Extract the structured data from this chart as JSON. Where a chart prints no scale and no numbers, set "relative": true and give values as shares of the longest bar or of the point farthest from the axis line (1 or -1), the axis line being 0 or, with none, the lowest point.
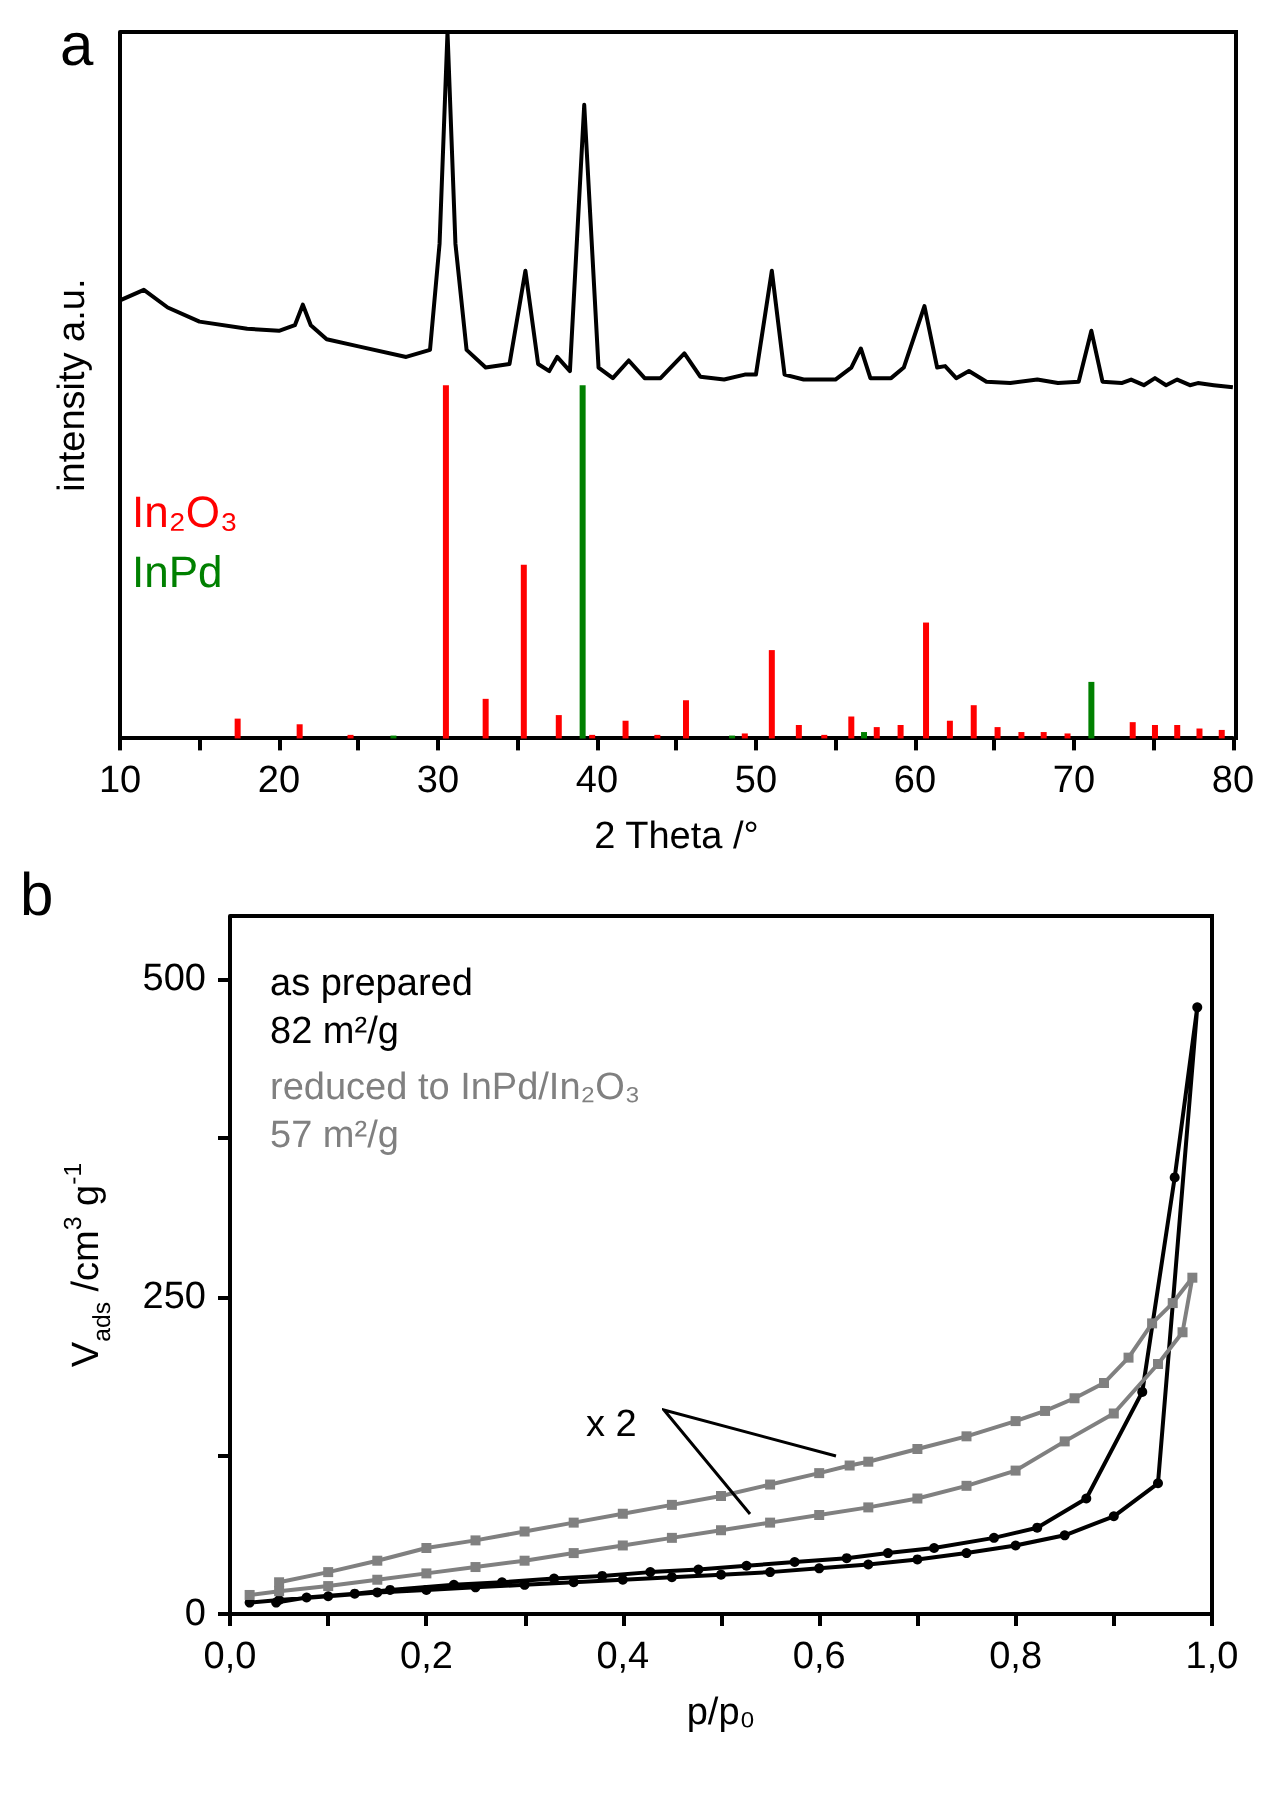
{
  "chart_data": [
    {
      "type": "line",
      "relative": true,
      "xlabel": "2 Theta /°",
      "ylabel": "intensity a.u.",
      "annotations": [
        "a"
      ],
      "tick_labels": "x",
      "marker": "none",
      "xlim": [
        10,
        80
      ],
      "xticks": [
        10,
        {
          "value": 15,
          "label": null
        },
        20,
        {
          "value": 25,
          "label": null
        },
        30,
        {
          "value": 35,
          "label": null
        },
        40,
        {
          "value": 45,
          "label": null
        },
        50,
        {
          "value": 55,
          "label": null
        },
        60,
        {
          "value": 65,
          "label": null
        },
        70,
        {
          "value": 75,
          "label": null
        },
        80
      ],
      "series": [
        {
          "color": "#000000",
          "x": [
            10,
            11.5,
            13,
            15,
            18,
            20,
            21,
            21.5,
            22,
            23,
            25,
            28,
            29.5,
            30.1,
            30.6,
            31.1,
            31.8,
            33,
            34.5,
            35.5,
            36.3,
            37,
            37.5,
            38.3,
            39.2,
            40.1,
            41,
            42,
            43,
            44,
            45.5,
            46.5,
            48,
            49.3,
            50,
            51,
            51.8,
            53,
            55,
            56,
            56.6,
            57.2,
            58.5,
            59.3,
            60.6,
            61.4,
            61.9,
            62.6,
            63.4,
            64.5,
            66,
            67.7,
            69,
            70.3,
            71.1,
            71.8,
            73,
            73.6,
            74.4,
            75.1,
            75.8,
            76.5,
            77.3,
            77.8,
            78.8,
            80
          ],
          "values": [
            0.62,
            0.635,
            0.61,
            0.59,
            0.58,
            0.577,
            0.585,
            0.614,
            0.585,
            0.565,
            0.555,
            0.54,
            0.55,
            0.7,
            1.0,
            0.7,
            0.55,
            0.525,
            0.53,
            0.662,
            0.53,
            0.52,
            0.54,
            0.52,
            0.897,
            0.525,
            0.51,
            0.535,
            0.51,
            0.51,
            0.545,
            0.512,
            0.508,
            0.515,
            0.515,
            0.662,
            0.515,
            0.508,
            0.508,
            0.525,
            0.552,
            0.51,
            0.51,
            0.525,
            0.612,
            0.525,
            0.527,
            0.51,
            0.52,
            0.505,
            0.503,
            0.508,
            0.503,
            0.505,
            0.577,
            0.505,
            0.503,
            0.508,
            0.5,
            0.51,
            0.5,
            0.508,
            0.5,
            0.503,
            0.5,
            0.497
          ]
        },
        {
          "type": "bar",
          "name": "In₂O₃",
          "color": "#ff0000",
          "x": [
            17.4,
            21.3,
            24.5,
            30.5,
            33.0,
            35.4,
            37.6,
            39.7,
            41.8,
            43.8,
            45.6,
            49.3,
            51.0,
            52.7,
            54.3,
            56.0,
            57.6,
            59.1,
            60.7,
            62.2,
            63.7,
            65.2,
            66.7,
            68.1,
            69.6,
            73.7,
            75.1,
            76.5,
            77.9,
            79.3
          ],
          "values": [
            0.028,
            0.02,
            0.005,
            0.5,
            0.056,
            0.246,
            0.033,
            0.005,
            0.025,
            0.005,
            0.054,
            0.007,
            0.125,
            0.019,
            0.005,
            0.031,
            0.016,
            0.019,
            0.164,
            0.025,
            0.047,
            0.016,
            0.009,
            0.009,
            0.007,
            0.023,
            0.019,
            0.019,
            0.014,
            0.012
          ]
        },
        {
          "type": "bar",
          "name": "InPd",
          "color": "#008000",
          "x": [
            27.2,
            39.1,
            48.5,
            56.8,
            71.1
          ],
          "values": [
            0.004,
            0.5,
            0.004,
            0.009,
            0.08
          ]
        }
      ]
    },
    {
      "type": "line",
      "xlabel": "p/p₀",
      "ylabel": "V$_{ads}$ /cm$^{3}$ g$^{-1}$",
      "annotations": [
        "b",
        "x 2"
      ],
      "xlim": [
        0,
        1.0
      ],
      "xticks": [
        {
          "value": 0,
          "label": "0,0"
        },
        {
          "value": 0.1,
          "label": null
        },
        {
          "value": 0.2,
          "label": "0,2"
        },
        {
          "value": 0.3,
          "label": null
        },
        {
          "value": 0.4,
          "label": "0,4"
        },
        {
          "value": 0.5,
          "label": null
        },
        {
          "value": 0.6,
          "label": "0,6"
        },
        {
          "value": 0.7,
          "label": null
        },
        {
          "value": 0.8,
          "label": "0,8"
        },
        {
          "value": 0.9,
          "label": null
        },
        {
          "value": 1.0,
          "label": "1,0"
        }
      ],
      "ylim": [
        0,
        550
      ],
      "yticks": [
        0,
        {
          "value": 125,
          "label": null
        },
        250,
        {
          "value": 375,
          "label": null
        },
        500
      ],
      "series": [
        {
          "name": "as prepared\n82 m²/g",
          "color": "#000000",
          "marker": "circle",
          "x": [
            0.02,
            0.05,
            0.1,
            0.15,
            0.2,
            0.25,
            0.3,
            0.35,
            0.4,
            0.45,
            0.5,
            0.55,
            0.6,
            0.65,
            0.7,
            0.75,
            0.8,
            0.85,
            0.9,
            0.945,
            0.985,
            0.962,
            0.929,
            0.872,
            0.822,
            0.778,
            0.717,
            0.67,
            0.628,
            0.575,
            0.526,
            0.477,
            0.428,
            0.379,
            0.33,
            0.277,
            0.228,
            0.163,
            0.127,
            0.078,
            0.047
          ],
          "values": [
            9,
            11,
            14,
            17,
            19,
            21,
            23,
            25,
            27,
            29,
            31,
            33,
            36,
            39,
            43,
            48,
            54,
            62,
            77,
            103,
            478,
            344,
            175,
            91,
            68,
            60,
            52,
            48,
            44,
            41,
            38,
            35,
            33,
            30,
            28,
            25,
            23,
            19,
            16,
            13,
            9
          ]
        },
        {
          "name": "reduced to InPd/In₂O₃\n57 m²/g",
          "color": "#808080",
          "marker": "square",
          "x": [
            0.02,
            0.05,
            0.1,
            0.15,
            0.2,
            0.25,
            0.3,
            0.35,
            0.4,
            0.45,
            0.5,
            0.55,
            0.6,
            0.65,
            0.7,
            0.75,
            0.8,
            0.85,
            0.9,
            0.945,
            0.97,
            0.98,
            0.96,
            0.939,
            0.915,
            0.89,
            0.86,
            0.83,
            0.8,
            0.75,
            0.7,
            0.65,
            0.631,
            0.6,
            0.55,
            0.5,
            0.45,
            0.4,
            0.35,
            0.3,
            0.25,
            0.2,
            0.15,
            0.1,
            0.05
          ],
          "values": [
            15,
            18,
            22,
            27,
            32,
            37,
            42,
            48,
            54,
            60,
            66,
            72,
            78,
            84,
            91,
            101,
            113,
            136,
            158,
            197,
            222,
            265,
            245,
            229,
            202,
            182,
            170,
            160,
            152,
            140,
            130,
            120,
            117,
            111,
            102,
            93,
            86,
            79,
            72,
            65,
            58,
            52,
            42,
            33,
            25
          ]
        }
      ]
    }
  ]
}
